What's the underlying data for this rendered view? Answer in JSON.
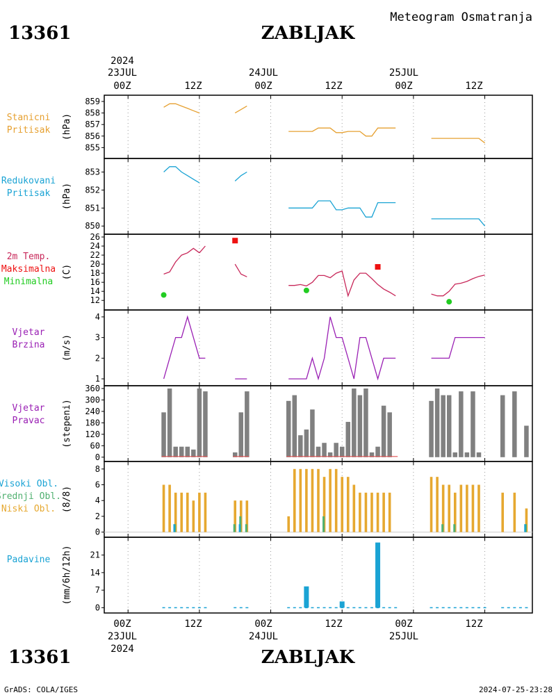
{
  "header": {
    "station_id": "13361",
    "station_name": "ZABLJAK",
    "product": "Meteogram Osmatranja",
    "credit": "GrADS: COLA/IGES",
    "timestamp": "2024-07-25-23:28"
  },
  "time_axis": {
    "top_year": "2024",
    "date_labels": [
      "23JUL",
      "24JUL",
      "25JUL"
    ],
    "hour_labels": [
      "00Z",
      "12Z",
      "00Z",
      "12Z",
      "00Z",
      "12Z"
    ],
    "bottom_year": "2024",
    "x_unit": "hours since 23JUL 00Z",
    "x_range": [
      -4,
      68
    ]
  },
  "colors": {
    "station_pressure": "#e6a030",
    "reduced_pressure": "#1aa3d4",
    "temp_2m": "#c8285a",
    "temp_max": "#ee1111",
    "temp_min": "#22cc22",
    "wind": "#9a20b4",
    "wind_dir_bar": "#808080",
    "low_cloud": "#e6a830",
    "mid_cloud": "#50b070",
    "high_cloud": "#1aa3d4",
    "precip": "#1aa3d4"
  },
  "chart_data": [
    {
      "type": "line",
      "id": "station_pressure",
      "label_lines": [
        "Stanicni",
        "Pritisak"
      ],
      "ylabel": "(hPa)",
      "ylim": [
        854.3,
        859.3
      ],
      "yticks": [
        855,
        856,
        857,
        858,
        859
      ],
      "series": [
        {
          "x": [
            6,
            7,
            8,
            9,
            10,
            11,
            12
          ],
          "y": [
            858.5,
            858.8,
            858.8,
            858.6,
            858.4,
            858.2,
            858.0
          ]
        },
        {
          "x": [
            18,
            19,
            20
          ],
          "y": [
            858.0,
            858.3,
            858.6
          ]
        },
        {
          "x": [
            27,
            28,
            29,
            30,
            31,
            32,
            33,
            34,
            35,
            36,
            37,
            38,
            39,
            40,
            41,
            42,
            43,
            44,
            45
          ],
          "y": [
            856.4,
            856.4,
            856.4,
            856.4,
            856.4,
            856.7,
            856.7,
            856.7,
            856.3,
            856.3,
            856.4,
            856.4,
            856.4,
            856.0,
            856.0,
            856.7,
            856.7,
            856.7,
            856.7
          ]
        },
        {
          "x": [
            51,
            52,
            53,
            54,
            55,
            56,
            57,
            58,
            59,
            60
          ],
          "y": [
            855.8,
            855.8,
            855.8,
            855.8,
            855.8,
            855.8,
            855.8,
            855.8,
            855.8,
            855.4
          ]
        }
      ]
    },
    {
      "type": "line",
      "id": "reduced_pressure",
      "label_lines": [
        "Redukovani",
        "Pritisak"
      ],
      "ylabel": "(hPa)",
      "ylim": [
        849.7,
        853.6
      ],
      "yticks": [
        850,
        851,
        852,
        853
      ],
      "series": [
        {
          "x": [
            6,
            7,
            8,
            9,
            10,
            11,
            12
          ],
          "y": [
            853.0,
            853.3,
            853.3,
            853.0,
            852.8,
            852.6,
            852.4
          ]
        },
        {
          "x": [
            18,
            19,
            20
          ],
          "y": [
            852.5,
            852.8,
            853.0
          ]
        },
        {
          "x": [
            27,
            28,
            29,
            30,
            31,
            32,
            33,
            34,
            35,
            36,
            37,
            38,
            39,
            40,
            41,
            42,
            43,
            44,
            45
          ],
          "y": [
            851.0,
            851.0,
            851.0,
            851.0,
            851.0,
            851.4,
            851.4,
            851.4,
            850.9,
            850.9,
            851.0,
            851.0,
            851.0,
            850.5,
            850.5,
            851.3,
            851.3,
            851.3,
            851.3
          ]
        },
        {
          "x": [
            51,
            52,
            53,
            54,
            55,
            56,
            57,
            58,
            59,
            60
          ],
          "y": [
            850.4,
            850.4,
            850.4,
            850.4,
            850.4,
            850.4,
            850.4,
            850.4,
            850.4,
            850.0
          ]
        }
      ]
    },
    {
      "type": "line",
      "id": "temperature",
      "label_lines": [
        "2m Temp.",
        "Maksimalna",
        "Minimalna"
      ],
      "ylabel": "(C)",
      "ylim": [
        10.5,
        26
      ],
      "yticks": [
        12,
        14,
        16,
        18,
        20,
        22,
        24,
        26
      ],
      "series": [
        {
          "x": [
            6,
            7,
            8,
            9,
            10,
            11,
            12
          ],
          "y": [
            17.8,
            18.3,
            20.5,
            22.0,
            22.5,
            23.5,
            22.5
          ]
        },
        {
          "x": [
            12,
            13
          ],
          "y": [
            22.5,
            24.0
          ]
        },
        {
          "x": [
            18,
            19,
            20
          ],
          "y": [
            20.0,
            17.8,
            17.2
          ]
        },
        {
          "x": [
            27,
            28,
            29,
            30,
            31,
            32,
            33,
            34,
            35,
            36,
            37,
            38,
            39,
            40,
            41,
            42,
            43,
            44,
            45
          ],
          "y": [
            15.3,
            15.3,
            15.5,
            15.2,
            16.0,
            17.5,
            17.5,
            17.0,
            18.0,
            18.5,
            13.0,
            16.5,
            18.0,
            18.0,
            16.8,
            15.5,
            14.5,
            13.8,
            13.0
          ]
        },
        {
          "x": [
            51,
            52,
            53,
            54,
            55,
            56,
            57,
            58,
            59,
            60
          ],
          "y": [
            13.4,
            13.0,
            13.0,
            14.0,
            15.6,
            15.8,
            16.2,
            16.8,
            17.3,
            17.6
          ]
        }
      ],
      "max_points": [
        {
          "x": 18,
          "y": 25.2
        },
        {
          "x": 42,
          "y": 19.4
        }
      ],
      "min_points": [
        {
          "x": 6,
          "y": 13.2
        },
        {
          "x": 30,
          "y": 14.2
        },
        {
          "x": 54,
          "y": 11.7
        }
      ]
    },
    {
      "type": "line",
      "id": "wind_speed",
      "label_lines": [
        "Vjetar",
        "Brzina"
      ],
      "ylabel": "(m/s)",
      "ylim": [
        0.8,
        4.2
      ],
      "yticks": [
        1,
        2,
        3,
        4
      ],
      "series": [
        {
          "x": [
            6,
            7,
            8,
            9,
            10,
            11,
            12,
            13
          ],
          "y": [
            1,
            2,
            3,
            3,
            4,
            3,
            2,
            2
          ]
        },
        {
          "x": [
            18,
            19,
            20
          ],
          "y": [
            1,
            1,
            1
          ]
        },
        {
          "x": [
            27,
            28,
            29,
            30,
            31,
            32,
            33,
            34,
            35,
            36,
            37,
            38,
            39,
            40,
            41,
            42,
            43,
            44,
            45
          ],
          "y": [
            1,
            1,
            1,
            1,
            2,
            1,
            2,
            4,
            3,
            3,
            2,
            1,
            3,
            3,
            2,
            1,
            2,
            2,
            2
          ]
        },
        {
          "x": [
            51,
            52,
            53,
            54,
            55,
            56,
            57,
            58,
            59,
            60
          ],
          "y": [
            2,
            2,
            2,
            2,
            3,
            3,
            3,
            3,
            3,
            3
          ]
        }
      ]
    },
    {
      "type": "bar",
      "id": "wind_direction",
      "label_lines": [
        "Vjetar",
        "Pravac"
      ],
      "ylabel": "(stepeni)",
      "ylim": [
        -8,
        360
      ],
      "yticks": [
        0,
        60,
        120,
        180,
        240,
        300,
        360
      ],
      "bars": [
        {
          "x": 6,
          "v": 235
        },
        {
          "x": 7,
          "v": 360
        },
        {
          "x": 8,
          "v": 55
        },
        {
          "x": 9,
          "v": 55
        },
        {
          "x": 10,
          "v": 55
        },
        {
          "x": 11,
          "v": 40
        },
        {
          "x": 12,
          "v": 360
        },
        {
          "x": 13,
          "v": 345
        },
        {
          "x": 18,
          "v": 25
        },
        {
          "x": 19,
          "v": 235
        },
        {
          "x": 20,
          "v": 345
        },
        {
          "x": 27,
          "v": 295
        },
        {
          "x": 28,
          "v": 325
        },
        {
          "x": 29,
          "v": 115
        },
        {
          "x": 30,
          "v": 145
        },
        {
          "x": 31,
          "v": 250
        },
        {
          "x": 32,
          "v": 55
        },
        {
          "x": 33,
          "v": 75
        },
        {
          "x": 34,
          "v": 25
        },
        {
          "x": 35,
          "v": 75
        },
        {
          "x": 36,
          "v": 55
        },
        {
          "x": 37,
          "v": 185
        },
        {
          "x": 38,
          "v": 360
        },
        {
          "x": 39,
          "v": 325
        },
        {
          "x": 40,
          "v": 360
        },
        {
          "x": 41,
          "v": 25
        },
        {
          "x": 42,
          "v": 55
        },
        {
          "x": 43,
          "v": 270
        },
        {
          "x": 44,
          "v": 235
        },
        {
          "x": 51,
          "v": 295
        },
        {
          "x": 52,
          "v": 360
        },
        {
          "x": 53,
          "v": 325
        },
        {
          "x": 54,
          "v": 325
        },
        {
          "x": 55,
          "v": 25
        },
        {
          "x": 56,
          "v": 345
        },
        {
          "x": 57,
          "v": 25
        },
        {
          "x": 58,
          "v": 345
        },
        {
          "x": 59,
          "v": 25
        },
        {
          "x": 63,
          "v": 325
        },
        {
          "x": 65,
          "v": 345
        },
        {
          "x": 67,
          "v": 165
        }
      ]
    },
    {
      "type": "bar",
      "id": "cloud_cover",
      "label_lines": [
        "Visoki Obl.",
        "Srednji Obl.",
        "Niski Obl."
      ],
      "ylabel": "(8/8)",
      "ylim": [
        -0.3,
        8.6
      ],
      "yticks": [
        0,
        2,
        4,
        6,
        8
      ],
      "low": [
        {
          "x": 6,
          "v": 6
        },
        {
          "x": 7,
          "v": 6
        },
        {
          "x": 8,
          "v": 5
        },
        {
          "x": 9,
          "v": 5
        },
        {
          "x": 10,
          "v": 5
        },
        {
          "x": 11,
          "v": 4
        },
        {
          "x": 12,
          "v": 5
        },
        {
          "x": 13,
          "v": 5
        },
        {
          "x": 18,
          "v": 4
        },
        {
          "x": 19,
          "v": 4
        },
        {
          "x": 20,
          "v": 4
        },
        {
          "x": 27,
          "v": 2
        },
        {
          "x": 28,
          "v": 8
        },
        {
          "x": 29,
          "v": 8
        },
        {
          "x": 30,
          "v": 8
        },
        {
          "x": 31,
          "v": 8
        },
        {
          "x": 32,
          "v": 8
        },
        {
          "x": 33,
          "v": 7
        },
        {
          "x": 34,
          "v": 8
        },
        {
          "x": 35,
          "v": 8
        },
        {
          "x": 36,
          "v": 7
        },
        {
          "x": 37,
          "v": 7
        },
        {
          "x": 38,
          "v": 6
        },
        {
          "x": 39,
          "v": 5
        },
        {
          "x": 40,
          "v": 5
        },
        {
          "x": 41,
          "v": 5
        },
        {
          "x": 42,
          "v": 5
        },
        {
          "x": 43,
          "v": 5
        },
        {
          "x": 44,
          "v": 5
        },
        {
          "x": 51,
          "v": 7
        },
        {
          "x": 52,
          "v": 7
        },
        {
          "x": 53,
          "v": 6
        },
        {
          "x": 54,
          "v": 6
        },
        {
          "x": 55,
          "v": 5
        },
        {
          "x": 56,
          "v": 6
        },
        {
          "x": 57,
          "v": 6
        },
        {
          "x": 58,
          "v": 6
        },
        {
          "x": 59,
          "v": 6
        },
        {
          "x": 63,
          "v": 5
        },
        {
          "x": 65,
          "v": 5
        },
        {
          "x": 67,
          "v": 3
        }
      ],
      "mid": [
        {
          "x": 8,
          "v": 1
        },
        {
          "x": 18,
          "v": 1
        },
        {
          "x": 19,
          "v": 2
        },
        {
          "x": 20,
          "v": 1
        },
        {
          "x": 33,
          "v": 2
        },
        {
          "x": 53,
          "v": 1
        },
        {
          "x": 55,
          "v": 1
        },
        {
          "x": 67,
          "v": 1
        }
      ],
      "high": [
        {
          "x": 8,
          "v": 1
        },
        {
          "x": 19,
          "v": 1
        },
        {
          "x": 67,
          "v": 1
        }
      ]
    },
    {
      "type": "bar",
      "id": "precipitation",
      "label_lines": [
        "Padavine"
      ],
      "ylabel": "(mm/6h/12h)",
      "ylim": [
        -1,
        27
      ],
      "yticks": [
        0,
        7,
        14,
        21
      ],
      "bars": [
        {
          "x": 30,
          "v": 8.5
        },
        {
          "x": 36,
          "v": 2.5
        },
        {
          "x": 42,
          "v": 26
        }
      ],
      "trace_ranges": [
        [
          6,
          13
        ],
        [
          18,
          20
        ],
        [
          27,
          45
        ],
        [
          51,
          60
        ],
        [
          63,
          67
        ]
      ]
    }
  ]
}
